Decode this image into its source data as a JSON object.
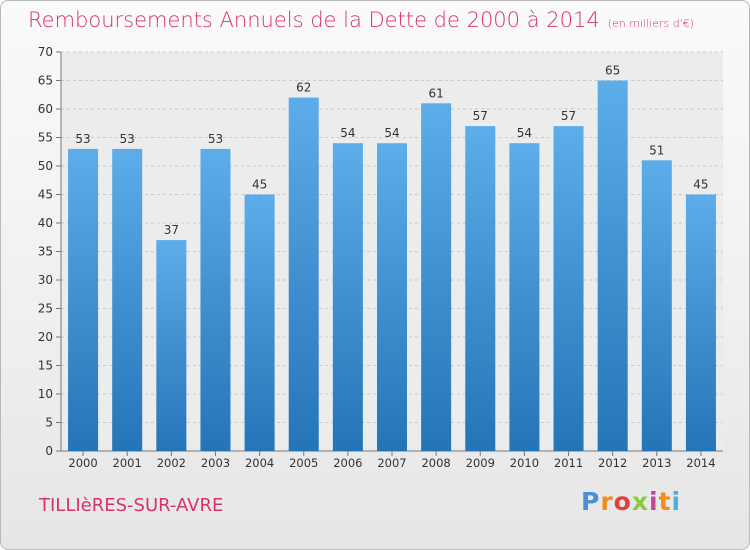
{
  "header": {
    "title": "Remboursements Annuels de la Dette de 2000 à 2014",
    "subtitle": "(en milliers d'€)"
  },
  "footer": {
    "commune": "TILLIèRES-SUR-AVRE",
    "logo": [
      "P",
      "r",
      "o",
      "x",
      "i",
      "t",
      "i"
    ],
    "logo_colors": [
      "#4a8fd6",
      "#f28c1e",
      "#e2403a",
      "#8fc73e",
      "#c2469a",
      "#f28c1e",
      "#4ab0e0"
    ]
  },
  "colors": {
    "bar_light": "#5dadea",
    "bar_dark": "#2474b8",
    "title": "#d6336e"
  },
  "chart_data": {
    "type": "bar",
    "categories": [
      "2000",
      "2001",
      "2002",
      "2003",
      "2004",
      "2005",
      "2006",
      "2007",
      "2008",
      "2009",
      "2010",
      "2011",
      "2012",
      "2013",
      "2014"
    ],
    "values": [
      53,
      53,
      37,
      53,
      45,
      62,
      54,
      54,
      61,
      57,
      54,
      57,
      65,
      51,
      45
    ],
    "title": "Remboursements Annuels de la Dette de 2000 à 2014",
    "ylim": [
      0,
      70
    ],
    "yticks": [
      0,
      5,
      10,
      15,
      20,
      25,
      30,
      35,
      40,
      45,
      50,
      55,
      60,
      65,
      70
    ],
    "grid": true,
    "data_labels": true
  }
}
